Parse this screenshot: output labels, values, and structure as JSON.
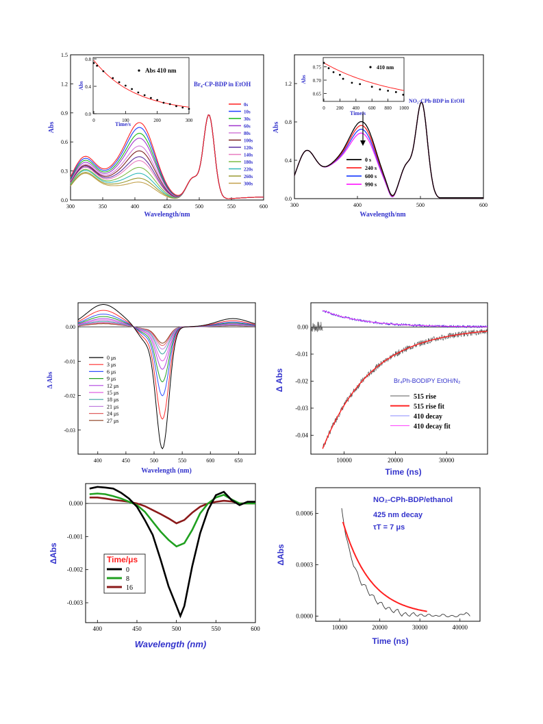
{
  "palette": {
    "axis_label": "#3333cc",
    "inset_fit": "#ff2020",
    "d_time_red": "#ff2020",
    "series_12": [
      "#ff1f1f",
      "#1f3fff",
      "#17b817",
      "#a035ce",
      "#d27bd9",
      "#7a1f1f",
      "#5a2ea0",
      "#e87bbf",
      "#7dbb45",
      "#2eb8b8",
      "#9a9a30",
      "#c2a04a"
    ],
    "b_series": [
      "#000000",
      "#ff2222",
      "#2244ff",
      "#ff22ff"
    ],
    "c_series": [
      "#000000",
      "#ff2a2a",
      "#3050ff",
      "#20a020",
      "#b040e0",
      "#e060e0",
      "#3aa0a0",
      "#c080e0",
      "#e06060",
      "#8a3a1a",
      "#a0a030"
    ],
    "d_series": [
      "#5a5a5a",
      "#ff2020",
      "#8a8aff",
      "#ff40ff"
    ],
    "e_series": [
      "#000000",
      "#20a020",
      "#8b1a1a"
    ]
  },
  "charts": {
    "chart_a": {
      "title": "Br₄-CP-BDP in EtOH",
      "xlabel": "Wavelength/nm",
      "ylabel": "Abs",
      "xticks": [
        "300",
        "350",
        "400",
        "450",
        "500",
        "550",
        "600"
      ],
      "yticks": [
        "0.0",
        "0.3",
        "0.6",
        "0.9",
        "1.2",
        "1.5"
      ],
      "legend": [
        "0s",
        "10s",
        "30s",
        "60s",
        "80s",
        "100s",
        "120s",
        "140s",
        "180s",
        "220s",
        "260s",
        "300s"
      ],
      "inset": {
        "xlabel": "Time/s",
        "ylabel": "Abs",
        "xticks": [
          "0",
          "100",
          "200",
          "300"
        ],
        "yticks": [
          "0.0",
          "0.4",
          "0.8"
        ],
        "legend": "Abs 410 nm"
      }
    },
    "chart_b": {
      "title": "NO₂-CPh-BDP in EtOH",
      "xlabel": "Wavelength/nm",
      "ylabel": "Abs",
      "xticks": [
        "300",
        "400",
        "500",
        "600"
      ],
      "yticks": [
        "0.0",
        "0.4",
        "0.8",
        "1.2"
      ],
      "legend": [
        "0 s",
        "240 s",
        "600 s",
        "990 s"
      ],
      "inset": {
        "xlabel": "Time/s",
        "ylabel": "Abs",
        "xticks": [
          "0",
          "200",
          "400",
          "600",
          "800",
          "1000"
        ],
        "yticks": [
          "0.65",
          "0.70",
          "0.75"
        ],
        "legend": "410 nm"
      }
    },
    "chart_c": {
      "xlabel": "Wavelength (nm)",
      "ylabel": "Δ Abs",
      "xticks": [
        "400",
        "450",
        "500",
        "550",
        "600",
        "650"
      ],
      "yticks": [
        "0.00",
        "-0.01",
        "-0.02",
        "-0.03"
      ],
      "legend": [
        "0 μs",
        "3 μs",
        "6 μs",
        "9 μs",
        "12 μs",
        "15 μs",
        "18 μs",
        "21 μs",
        "24 μs",
        "27 μs"
      ]
    },
    "chart_d": {
      "title": "Br₄Ph-BODIPY EtOH/N₂",
      "xlabel": "Time (ns)",
      "ylabel": "Δ Abs",
      "xticks": [
        "10000",
        "20000",
        "30000"
      ],
      "yticks": [
        "0.00",
        "-0.01",
        "-0.02",
        "-0.03",
        "-0.04"
      ],
      "legend": [
        "515 rise",
        "515 rise fit",
        "410 decay",
        "410 decay fit"
      ]
    },
    "chart_e": {
      "xlabel": "Wavelength (nm)",
      "ylabel": "ΔAbs",
      "xticks": [
        "400",
        "450",
        "500",
        "550",
        "600"
      ],
      "yticks": [
        "0.000",
        "-0.001",
        "-0.002",
        "-0.003"
      ],
      "legend_title": "Time/μs",
      "legend": [
        "0",
        "8",
        "16"
      ]
    },
    "chart_f": {
      "title": "NO₂-CPh-BDP/ethanol",
      "annotation_1": "425 nm decay",
      "annotation_2": "τT = 7 μs",
      "xlabel": "Time (ns)",
      "ylabel": "ΔAbs",
      "xticks": [
        "10000",
        "20000",
        "30000",
        "40000"
      ],
      "yticks": [
        "0.0000",
        "0.0003",
        "0.0006"
      ]
    }
  },
  "chart_data": [
    {
      "type": "line",
      "id": "chart_a",
      "xlim": [
        300,
        600
      ],
      "ylim": [
        0,
        1.5
      ],
      "title": "Br₄-CP-BDP in EtOH",
      "xlabel": "Wavelength/nm",
      "ylabel": "Abs",
      "band_410_peak": [
        0.79,
        0.74,
        0.68,
        0.63,
        0.55,
        0.5,
        0.44,
        0.4,
        0.33,
        0.27,
        0.22,
        0.18
      ],
      "shoulder_325": [
        0.44,
        0.42,
        0.4,
        0.38,
        0.36,
        0.35,
        0.34,
        0.33,
        0.31,
        0.3,
        0.28,
        0.27
      ],
      "peak_515": 0.87,
      "series_names": [
        "0s",
        "10s",
        "30s",
        "60s",
        "80s",
        "100s",
        "120s",
        "140s",
        "180s",
        "220s",
        "260s",
        "300s"
      ],
      "inset": {
        "type": "scatter",
        "series_name": "Abs 410 nm",
        "xlim": [
          0,
          300
        ],
        "ylim": [
          0,
          0.8
        ],
        "x": [
          0,
          10,
          30,
          60,
          80,
          100,
          120,
          140,
          160,
          180,
          200,
          220,
          240,
          260,
          280,
          300
        ],
        "y": [
          0.74,
          0.7,
          0.62,
          0.52,
          0.46,
          0.41,
          0.36,
          0.31,
          0.27,
          0.23,
          0.2,
          0.16,
          0.14,
          0.11,
          0.09,
          0.07
        ]
      }
    },
    {
      "type": "line",
      "id": "chart_b",
      "xlim": [
        300,
        600
      ],
      "ylim": [
        0,
        1.5
      ],
      "title": "NO₂-CPh-BDP in EtOH",
      "xlabel": "Wavelength/nm",
      "ylabel": "Abs",
      "series_names": [
        "0 s",
        "240 s",
        "600 s",
        "990 s"
      ],
      "band_410_peak": [
        0.78,
        0.74,
        0.7,
        0.66
      ],
      "peak_500": 0.99,
      "inset": {
        "type": "scatter",
        "series_name": "410 nm",
        "xlim": [
          0,
          1000
        ],
        "ylim": [
          0.62,
          0.78
        ],
        "x": [
          0,
          60,
          120,
          200,
          240,
          350,
          450,
          600,
          700,
          800,
          900,
          990
        ],
        "y": [
          0.765,
          0.745,
          0.73,
          0.72,
          0.705,
          0.69,
          0.685,
          0.675,
          0.665,
          0.66,
          0.655,
          0.645
        ]
      }
    },
    {
      "type": "line",
      "id": "chart_c",
      "xlim": [
        365,
        680
      ],
      "ylim": [
        -0.037,
        0.007
      ],
      "xlabel": "Wavelength (nm)",
      "ylabel": "Δ Abs",
      "series_names": [
        "0 μs",
        "3 μs",
        "6 μs",
        "9 μs",
        "12 μs",
        "15 μs",
        "18 μs",
        "21 μs",
        "24 μs",
        "27 μs"
      ],
      "min_at_515": [
        -0.035,
        -0.0265,
        -0.0198,
        -0.0158,
        -0.0122,
        -0.0098,
        -0.0078,
        -0.0064,
        -0.0054,
        -0.0047
      ],
      "max_at_410": [
        0.0065,
        0.0048,
        0.0037,
        0.003,
        0.0024,
        0.002,
        0.0016,
        0.0013,
        0.0011,
        0.0009
      ]
    },
    {
      "type": "line",
      "id": "chart_d",
      "xlim": [
        3500,
        38000
      ],
      "ylim": [
        -0.047,
        0.009
      ],
      "title": "Br₄Ph-BODIPY EtOH/N₂",
      "xlabel": "Time (ns)",
      "ylabel": "Δ Abs",
      "series_names": [
        "515 rise",
        "515 rise fit",
        "410 decay",
        "410 decay fit"
      ],
      "rise_start": {
        "x": 5800,
        "y": -0.044
      },
      "rise_end": {
        "x": 38000,
        "y": -0.0015
      },
      "decay_start": {
        "x": 5800,
        "y": 0.006
      },
      "decay_end": {
        "x": 38000,
        "y": 0.0004
      }
    },
    {
      "type": "line",
      "id": "chart_e",
      "xlim": [
        385,
        600
      ],
      "ylim": [
        -0.0036,
        0.0006
      ],
      "xlabel": "Wavelength (nm)",
      "ylabel": "ΔAbs",
      "series": [
        {
          "name": "0",
          "x": [
            390,
            400,
            410,
            420,
            430,
            440,
            450,
            460,
            470,
            480,
            490,
            500,
            505,
            510,
            520,
            530,
            540,
            550,
            560,
            570,
            580,
            590,
            600
          ],
          "y": [
            0.00045,
            0.0005,
            0.00048,
            0.00045,
            0.00032,
            0.00015,
            -0.0001,
            -0.0005,
            -0.00095,
            -0.0017,
            -0.0025,
            -0.0031,
            -0.0034,
            -0.0031,
            -0.0019,
            -0.0009,
            -0.0002,
            0.00025,
            0.00035,
            0.0001,
            -5e-05,
            5e-05,
            5e-05
          ]
        },
        {
          "name": "8",
          "x": [
            390,
            400,
            410,
            420,
            430,
            440,
            450,
            460,
            470,
            480,
            490,
            500,
            510,
            520,
            530,
            540,
            550,
            560,
            570,
            580,
            590,
            600
          ],
          "y": [
            0.00028,
            0.0003,
            0.00028,
            0.00022,
            0.00015,
            5e-05,
            -5e-05,
            -0.00025,
            -0.00055,
            -0.00085,
            -0.0011,
            -0.0013,
            -0.0012,
            -0.0008,
            -0.0003,
            0.0,
            0.00018,
            0.00026,
            0.00012,
            0.0,
            0.0,
            0.0
          ]
        },
        {
          "name": "16",
          "x": [
            390,
            400,
            410,
            420,
            430,
            440,
            450,
            460,
            470,
            480,
            490,
            500,
            510,
            520,
            530,
            540,
            550,
            560,
            570,
            580,
            590,
            600
          ],
          "y": [
            0.00018,
            0.00018,
            0.00015,
            0.00011,
            8e-05,
            5e-05,
            0.0,
            -8e-05,
            -0.0002,
            -0.00032,
            -0.00045,
            -0.0006,
            -0.0005,
            -0.00028,
            -0.0001,
            0.0,
            5e-05,
            8e-05,
            6e-05,
            0.0,
            0.0,
            0.0
          ]
        }
      ]
    },
    {
      "type": "line",
      "id": "chart_f",
      "xlim": [
        4000,
        45000
      ],
      "ylim": [
        -3e-05,
        0.00075
      ],
      "title": "NO₂-CPh-BDP/ethanol",
      "xlabel": "Time (ns)",
      "ylabel": "ΔAbs",
      "series": [
        {
          "name": "data",
          "x": [
            10500,
            11500,
            12500,
            13500,
            14500,
            15500,
            16500,
            17500,
            18500,
            19500,
            20500,
            21500,
            22500,
            23500,
            24500,
            25500,
            26500,
            27500,
            28500,
            29500,
            30500,
            31500,
            32500,
            33500,
            34500,
            35500,
            36500,
            37500,
            38500,
            39500,
            40500,
            41500,
            42500
          ],
          "y": [
            0.00063,
            0.00047,
            0.00038,
            0.00029,
            0.00025,
            0.00018,
            0.00018,
            0.00012,
            0.00012,
            7e-05,
            8e-05,
            4e-05,
            5e-05,
            2e-05,
            4e-05,
            0.0,
            2e-05,
            0.0,
            2e-05,
            0.0,
            1e-05,
            0.0,
            1e-05,
            0.0,
            0.0,
            1e-05,
            0.0,
            0.0,
            0.0,
            0.0,
            1e-05,
            2e-05,
            0.0
          ]
        },
        {
          "name": "fit",
          "tau_ns": 7000,
          "x0": 10800,
          "y0": 0.00055,
          "x_end": 32000
        }
      ]
    }
  ]
}
